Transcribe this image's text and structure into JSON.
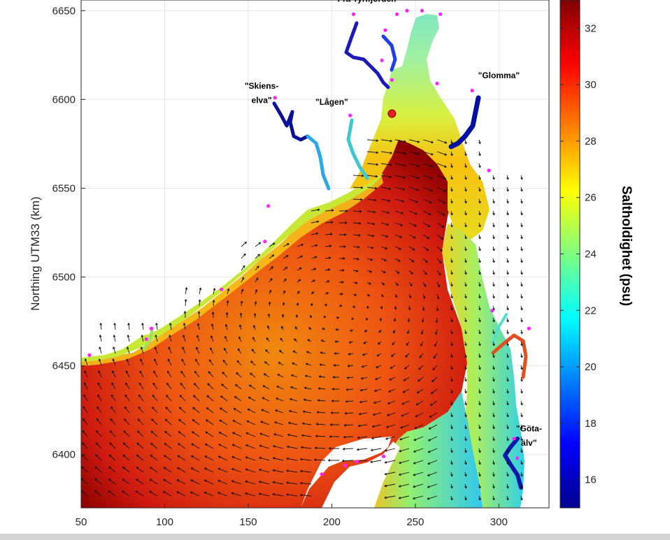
{
  "chart_data": {
    "type": "heatmap",
    "ylabel": "Northing UTM33 (km)",
    "xlabel": "",
    "xlim": [
      50,
      330
    ],
    "ylim": [
      6370,
      6656
    ],
    "xticks": [
      50,
      100,
      150,
      200,
      250,
      300
    ],
    "yticks": [
      6400,
      6450,
      6500,
      6550,
      6600,
      6650
    ],
    "grid": true,
    "colorbar": {
      "title": "Saltholdighet (psu)",
      "range": [
        15,
        33
      ],
      "ticks": [
        16,
        18,
        20,
        22,
        24,
        26,
        28,
        30,
        32
      ],
      "colormap": "jet"
    },
    "annotations": [
      {
        "text": "Fra Tyrifjorden",
        "x": 221,
        "y": 6655
      },
      {
        "text": "\"Skiens-",
        "x": 158,
        "y": 6606
      },
      {
        "text": "elva\"",
        "x": 158,
        "y": 6598
      },
      {
        "text": "\"Lågen\"",
        "x": 200,
        "y": 6597
      },
      {
        "text": "\"Glomma\"",
        "x": 300,
        "y": 6612
      },
      {
        "text": "\"Göta-",
        "x": 318,
        "y": 6413
      },
      {
        "text": "älv\"",
        "x": 318,
        "y": 6405
      }
    ],
    "marker": {
      "x": 236,
      "y": 6592,
      "color": "#e8201e"
    },
    "river_mouths": [
      {
        "x": 213,
        "y": 6648
      },
      {
        "x": 232,
        "y": 6639
      },
      {
        "x": 239,
        "y": 6648
      },
      {
        "x": 245,
        "y": 6650
      },
      {
        "x": 254,
        "y": 6650
      },
      {
        "x": 265,
        "y": 6648
      },
      {
        "x": 230,
        "y": 6622
      },
      {
        "x": 236,
        "y": 6611
      },
      {
        "x": 263,
        "y": 6609
      },
      {
        "x": 284,
        "y": 6605
      },
      {
        "x": 166,
        "y": 6601
      },
      {
        "x": 211,
        "y": 6591
      },
      {
        "x": 294,
        "y": 6560
      },
      {
        "x": 162,
        "y": 6540
      },
      {
        "x": 160,
        "y": 6520
      },
      {
        "x": 134,
        "y": 6493
      },
      {
        "x": 92,
        "y": 6471
      },
      {
        "x": 89,
        "y": 6465
      },
      {
        "x": 55,
        "y": 6456
      },
      {
        "x": 296,
        "y": 6481
      },
      {
        "x": 318,
        "y": 6471
      },
      {
        "x": 309,
        "y": 6409
      },
      {
        "x": 231,
        "y": 6399
      },
      {
        "x": 215,
        "y": 6396
      },
      {
        "x": 208,
        "y": 6394
      },
      {
        "x": 194,
        "y": 6389
      },
      {
        "x": 311,
        "y": 6398
      }
    ]
  }
}
